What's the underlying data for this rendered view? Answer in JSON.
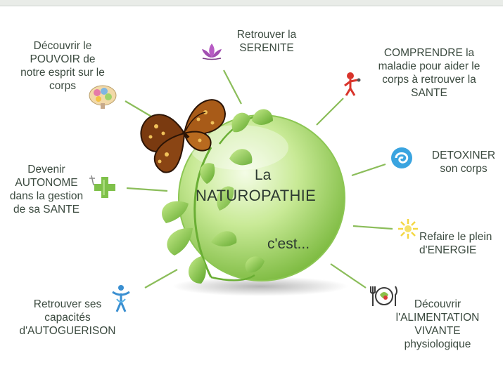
{
  "center": {
    "line1": "La",
    "line2": "NATUROPATHIE",
    "line3": "c'est..."
  },
  "labels": {
    "pouvoir": "Découvrir le\nPOUVOIR de\nnotre esprit sur le\ncorps",
    "serenite": "Retrouver la\nSERENITE",
    "comprendre": "COMPRENDRE la\nmaladie pour aider le\ncorps à retrouver la\nSANTE",
    "detoxiner": "DETOXINER\nson corps",
    "autonome": "Devenir\nAUTONOME\ndans la gestion\nde sa SANTE",
    "energie": "Refaire le plein\nd'ENERGIE",
    "autoguerison": "Retrouver ses\ncapacités\nd'AUTOGUERISON",
    "alimentation": "Découvrir\nl'ALIMENTATION\nVIVANTE\nphysiologique"
  },
  "icons": {
    "pouvoir": "brain-icon",
    "serenite": "lotus-icon",
    "comprendre": "figure-icon",
    "detoxiner": "water-swirl-icon",
    "autonome": "pharmacy-cross-icon",
    "energie": "sun-icon",
    "autoguerison": "human-figure-icon",
    "alimentation": "plate-cutlery-icon"
  },
  "colors": {
    "text": "#3b4a3f",
    "connector": "#8bbd5a",
    "sphere": "#a8d66c",
    "sphere_light": "#e8f7cf",
    "leaf": "#7cbf3a",
    "butterfly": "#6b3413"
  }
}
